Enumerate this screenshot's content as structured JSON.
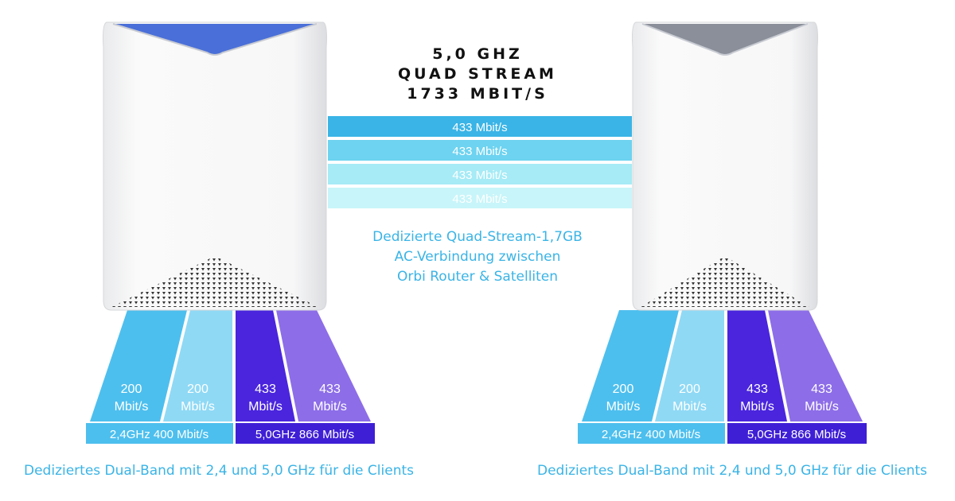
{
  "header": {
    "lines": [
      "5,0 GHZ",
      "QUAD STREAM",
      "1733 MBIT/S"
    ]
  },
  "backhaul": {
    "streams": [
      "433 Mbit/s",
      "433 Mbit/s",
      "433 Mbit/s",
      "433 Mbit/s"
    ],
    "colors": [
      "#3ab4e6",
      "#6dd3f0",
      "#a6ebf6",
      "#c8f5f9"
    ]
  },
  "description": {
    "lines": [
      "Dedizierte Quad-Stream-1,7GB",
      "AC-Verbindung zwischen",
      "Orbi Router & Satelliten"
    ]
  },
  "devices": [
    {
      "name": "router",
      "cap_color": "#4a6fd8",
      "bands": [
        {
          "value": "200",
          "unit": "Mbit/s"
        },
        {
          "value": "200",
          "unit": "Mbit/s"
        },
        {
          "value": "433",
          "unit": "Mbit/s"
        },
        {
          "value": "433",
          "unit": "Mbit/s"
        }
      ],
      "totals": [
        {
          "label": "2,4GHz  400 Mbit/s"
        },
        {
          "label": "5,0GHz  866 Mbit/s"
        }
      ],
      "caption": "Dediziertes Dual-Band mit 2,4 und 5,0 GHz für die Clients"
    },
    {
      "name": "satellite",
      "cap_color": "#8a8f99",
      "bands": [
        {
          "value": "200",
          "unit": "Mbit/s"
        },
        {
          "value": "200",
          "unit": "Mbit/s"
        },
        {
          "value": "433",
          "unit": "Mbit/s"
        },
        {
          "value": "433",
          "unit": "Mbit/s"
        }
      ],
      "totals": [
        {
          "label": "2,4GHz 400 Mbit/s"
        },
        {
          "label": "5,0GHz 866 Mbit/s"
        }
      ],
      "caption": "Dediziertes Dual-Band mit 2,4 und 5,0 GHz für die Clients"
    }
  ],
  "band_colors": [
    "#4dbfee",
    "#8fd9f5",
    "#4a25dd",
    "#8d6de8"
  ],
  "total_colors": [
    "#4dbfee",
    "#3f1fd6"
  ]
}
